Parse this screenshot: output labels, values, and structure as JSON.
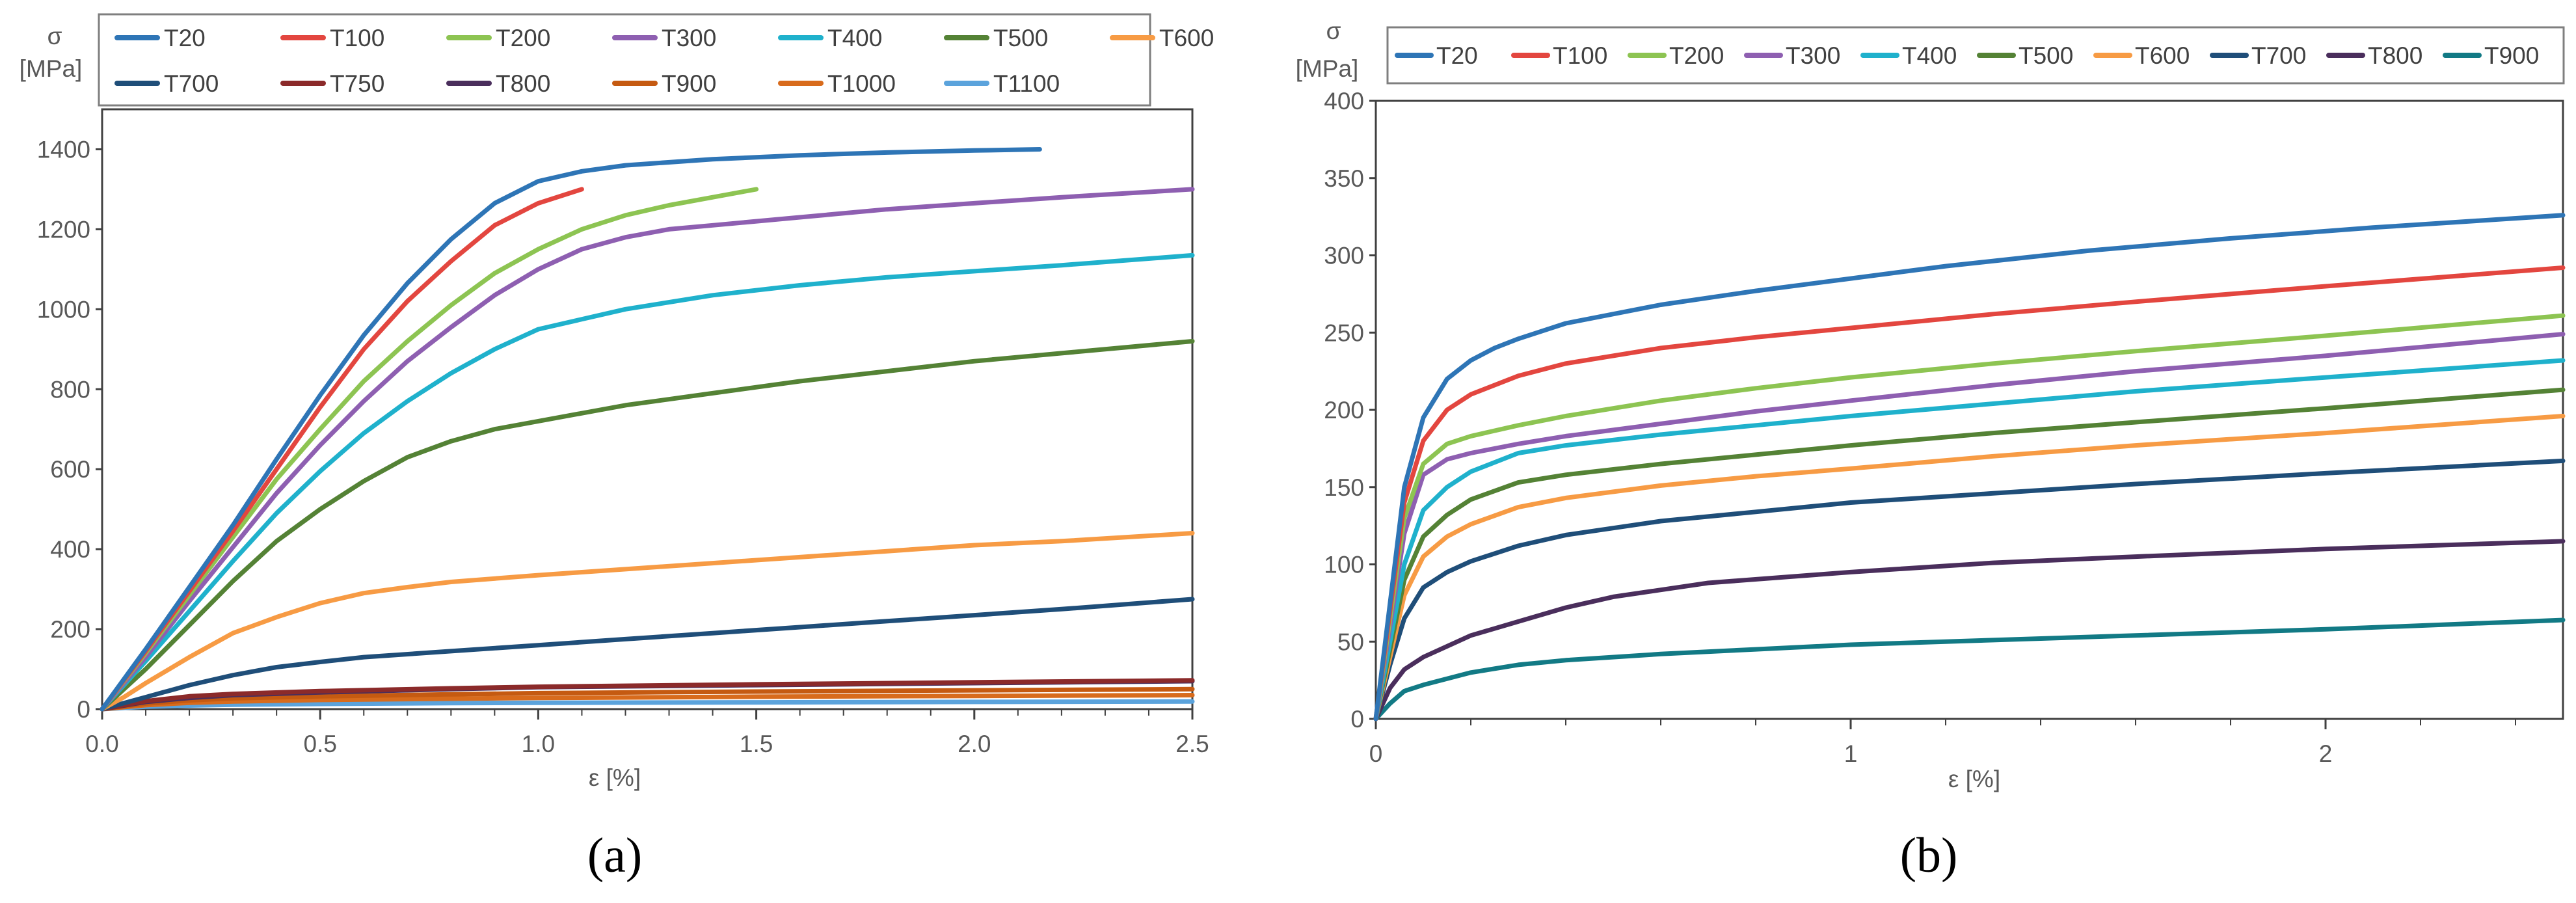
{
  "panels": {
    "a": {
      "label": "(a)"
    },
    "b": {
      "label": "(b)"
    }
  },
  "chart_data": [
    {
      "type": "line",
      "panel": "a",
      "ylabel": "σ",
      "ylabel_unit": "[MPa]",
      "xlabel": "ε [%]",
      "xlim": [
        0,
        2.5
      ],
      "ylim": [
        0,
        1500
      ],
      "xticks": [
        "0.0",
        "0.5",
        "1.0",
        "1.5",
        "2.0",
        "2.5"
      ],
      "yticks": [
        "0",
        "200",
        "400",
        "600",
        "800",
        "1000",
        "1200",
        "1400"
      ],
      "legend_position": "top",
      "series": [
        {
          "name": "T20",
          "color": "#2e75b6",
          "x": [
            0,
            0.05,
            0.1,
            0.2,
            0.3,
            0.4,
            0.5,
            0.6,
            0.7,
            0.8,
            0.9,
            1.0,
            1.1,
            1.2,
            1.4,
            1.6,
            1.8,
            2.0,
            2.15
          ],
          "y": [
            0,
            75,
            150,
            305,
            460,
            625,
            785,
            935,
            1065,
            1175,
            1265,
            1320,
            1345,
            1360,
            1375,
            1385,
            1392,
            1397,
            1400
          ]
        },
        {
          "name": "T100",
          "color": "#e3463f",
          "x": [
            0,
            0.05,
            0.1,
            0.2,
            0.3,
            0.4,
            0.5,
            0.6,
            0.7,
            0.8,
            0.9,
            1.0,
            1.1
          ],
          "y": [
            0,
            72,
            145,
            295,
            445,
            600,
            755,
            900,
            1020,
            1120,
            1210,
            1265,
            1300
          ]
        },
        {
          "name": "T200",
          "color": "#8dc452",
          "x": [
            0,
            0.05,
            0.1,
            0.2,
            0.3,
            0.4,
            0.5,
            0.6,
            0.7,
            0.8,
            0.9,
            1.0,
            1.1,
            1.2,
            1.3,
            1.4,
            1.5
          ],
          "y": [
            0,
            70,
            140,
            285,
            430,
            575,
            700,
            820,
            920,
            1010,
            1090,
            1150,
            1200,
            1235,
            1260,
            1280,
            1300
          ]
        },
        {
          "name": "T300",
          "color": "#8e5fb1",
          "x": [
            0,
            0.05,
            0.1,
            0.2,
            0.3,
            0.4,
            0.5,
            0.6,
            0.7,
            0.8,
            0.9,
            1.0,
            1.1,
            1.2,
            1.3,
            1.4,
            1.6,
            1.8,
            2.0,
            2.2,
            2.5
          ],
          "y": [
            0,
            65,
            130,
            270,
            405,
            540,
            660,
            770,
            870,
            955,
            1035,
            1100,
            1150,
            1180,
            1200,
            1210,
            1230,
            1250,
            1265,
            1280,
            1300
          ]
        },
        {
          "name": "T400",
          "color": "#1fb1cc",
          "x": [
            0,
            0.05,
            0.1,
            0.2,
            0.3,
            0.4,
            0.5,
            0.6,
            0.7,
            0.8,
            0.9,
            1.0,
            1.2,
            1.4,
            1.6,
            1.8,
            2.0,
            2.2,
            2.5
          ],
          "y": [
            0,
            60,
            120,
            245,
            370,
            490,
            595,
            690,
            770,
            840,
            900,
            950,
            1000,
            1035,
            1060,
            1080,
            1095,
            1110,
            1135
          ]
        },
        {
          "name": "T500",
          "color": "#548235",
          "x": [
            0,
            0.05,
            0.1,
            0.2,
            0.3,
            0.4,
            0.5,
            0.6,
            0.7,
            0.8,
            0.9,
            1.0,
            1.2,
            1.4,
            1.6,
            1.8,
            2.0,
            2.2,
            2.5
          ],
          "y": [
            0,
            50,
            100,
            210,
            320,
            420,
            500,
            570,
            630,
            670,
            700,
            720,
            760,
            790,
            820,
            845,
            870,
            890,
            920
          ]
        },
        {
          "name": "T600",
          "color": "#f79b44",
          "x": [
            0,
            0.05,
            0.1,
            0.2,
            0.3,
            0.4,
            0.5,
            0.6,
            0.7,
            0.8,
            1.0,
            1.2,
            1.4,
            1.6,
            1.8,
            2.0,
            2.2,
            2.5
          ],
          "y": [
            0,
            30,
            65,
            130,
            190,
            230,
            265,
            290,
            305,
            318,
            335,
            350,
            365,
            380,
            395,
            410,
            420,
            440
          ]
        },
        {
          "name": "T700",
          "color": "#1f4e79",
          "x": [
            0,
            0.05,
            0.1,
            0.2,
            0.3,
            0.4,
            0.5,
            0.6,
            0.8,
            1.0,
            1.2,
            1.4,
            1.6,
            1.8,
            2.0,
            2.2,
            2.5
          ],
          "y": [
            0,
            15,
            30,
            60,
            85,
            105,
            118,
            130,
            145,
            160,
            175,
            190,
            205,
            220,
            235,
            250,
            275
          ]
        },
        {
          "name": "T750",
          "color": "#8b2a2a",
          "x": [
            0,
            0.1,
            0.2,
            0.3,
            0.5,
            0.8,
            1.0,
            1.5,
            2.0,
            2.5
          ],
          "y": [
            0,
            20,
            32,
            38,
            45,
            52,
            56,
            62,
            67,
            72
          ]
        },
        {
          "name": "T800",
          "color": "#4a2e5c",
          "x": [
            0,
            0.1,
            0.2,
            0.3,
            0.5,
            0.8,
            1.0,
            1.5,
            2.0,
            2.5
          ],
          "y": [
            0,
            18,
            28,
            35,
            42,
            50,
            55,
            60,
            65,
            70
          ]
        },
        {
          "name": "T900",
          "color": "#c55a11",
          "x": [
            0,
            0.1,
            0.2,
            0.3,
            0.5,
            0.8,
            1.0,
            1.5,
            2.0,
            2.5
          ],
          "y": [
            0,
            14,
            22,
            27,
            32,
            37,
            40,
            44,
            47,
            50
          ]
        },
        {
          "name": "T1000",
          "color": "#d86b1c",
          "x": [
            0,
            0.1,
            0.2,
            0.3,
            0.5,
            0.8,
            1.0,
            1.5,
            2.0,
            2.5
          ],
          "y": [
            0,
            10,
            16,
            19,
            23,
            26,
            28,
            31,
            33,
            35
          ]
        },
        {
          "name": "T1100",
          "color": "#5ba3dc",
          "x": [
            0,
            0.1,
            0.2,
            0.3,
            0.5,
            0.8,
            1.0,
            1.5,
            2.0,
            2.5
          ],
          "y": [
            0,
            6,
            9,
            11,
            13,
            15,
            16,
            17,
            18,
            19
          ]
        }
      ]
    },
    {
      "type": "line",
      "panel": "b",
      "ylabel": "σ",
      "ylabel_unit": "[MPa]",
      "xlabel": "ε [%]",
      "xlim": [
        0,
        2.5
      ],
      "ylim": [
        0,
        400
      ],
      "xticks": [
        "0",
        "1",
        "2"
      ],
      "yticks": [
        "0",
        "50",
        "100",
        "150",
        "200",
        "250",
        "300",
        "350",
        "400"
      ],
      "legend_position": "top",
      "series": [
        {
          "name": "T20",
          "color": "#2e75b6",
          "x": [
            0,
            0.03,
            0.06,
            0.1,
            0.15,
            0.2,
            0.25,
            0.3,
            0.4,
            0.6,
            0.8,
            1.0,
            1.2,
            1.5,
            1.8,
            2.1,
            2.5
          ],
          "y": [
            0,
            75,
            150,
            195,
            220,
            232,
            240,
            246,
            256,
            268,
            277,
            285,
            293,
            303,
            311,
            318,
            326
          ]
        },
        {
          "name": "T100",
          "color": "#e3463f",
          "x": [
            0,
            0.03,
            0.06,
            0.1,
            0.15,
            0.2,
            0.3,
            0.4,
            0.6,
            0.8,
            1.0,
            1.3,
            1.6,
            2.0,
            2.5
          ],
          "y": [
            0,
            70,
            140,
            180,
            200,
            210,
            222,
            230,
            240,
            247,
            253,
            262,
            270,
            280,
            292
          ]
        },
        {
          "name": "T200",
          "color": "#8dc452",
          "x": [
            0,
            0.03,
            0.06,
            0.1,
            0.15,
            0.2,
            0.3,
            0.4,
            0.6,
            0.8,
            1.0,
            1.3,
            1.6,
            2.0,
            2.5
          ],
          "y": [
            0,
            65,
            130,
            165,
            178,
            183,
            190,
            196,
            206,
            214,
            221,
            230,
            238,
            248,
            261
          ]
        },
        {
          "name": "T300",
          "color": "#8e5fb1",
          "x": [
            0,
            0.03,
            0.06,
            0.1,
            0.15,
            0.2,
            0.3,
            0.4,
            0.6,
            0.8,
            1.0,
            1.3,
            1.6,
            2.0,
            2.5
          ],
          "y": [
            0,
            60,
            120,
            158,
            168,
            172,
            178,
            183,
            191,
            199,
            206,
            216,
            225,
            235,
            249
          ]
        },
        {
          "name": "T400",
          "color": "#1fb1cc",
          "x": [
            0,
            0.03,
            0.06,
            0.1,
            0.15,
            0.2,
            0.3,
            0.4,
            0.6,
            0.8,
            1.0,
            1.3,
            1.6,
            2.0,
            2.5
          ],
          "y": [
            0,
            50,
            100,
            135,
            150,
            160,
            172,
            177,
            184,
            190,
            196,
            204,
            212,
            221,
            232
          ]
        },
        {
          "name": "T500",
          "color": "#548235",
          "x": [
            0,
            0.03,
            0.06,
            0.1,
            0.15,
            0.2,
            0.3,
            0.4,
            0.6,
            0.8,
            1.0,
            1.3,
            1.6,
            2.0,
            2.5
          ],
          "y": [
            0,
            45,
            90,
            118,
            132,
            142,
            153,
            158,
            165,
            171,
            177,
            185,
            192,
            201,
            213
          ]
        },
        {
          "name": "T600",
          "color": "#f79b44",
          "x": [
            0,
            0.03,
            0.06,
            0.1,
            0.15,
            0.2,
            0.3,
            0.4,
            0.6,
            0.8,
            1.0,
            1.3,
            1.6,
            2.0,
            2.5
          ],
          "y": [
            0,
            40,
            80,
            105,
            118,
            126,
            137,
            143,
            151,
            157,
            162,
            170,
            177,
            185,
            196
          ]
        },
        {
          "name": "T700",
          "color": "#1f4e79",
          "x": [
            0,
            0.03,
            0.06,
            0.1,
            0.15,
            0.2,
            0.3,
            0.4,
            0.6,
            0.8,
            1.0,
            1.3,
            1.6,
            2.0,
            2.5
          ],
          "y": [
            0,
            35,
            65,
            85,
            95,
            102,
            112,
            119,
            128,
            134,
            140,
            146,
            152,
            159,
            167
          ]
        },
        {
          "name": "T800",
          "color": "#4a2e5c",
          "x": [
            0,
            0.03,
            0.06,
            0.1,
            0.15,
            0.2,
            0.3,
            0.4,
            0.5,
            0.7,
            1.0,
            1.3,
            1.6,
            2.0,
            2.5
          ],
          "y": [
            0,
            20,
            32,
            40,
            47,
            54,
            63,
            72,
            79,
            88,
            95,
            101,
            105,
            110,
            115
          ]
        },
        {
          "name": "T900",
          "color": "#127a85",
          "x": [
            0,
            0.03,
            0.06,
            0.1,
            0.15,
            0.2,
            0.3,
            0.4,
            0.6,
            0.8,
            1.0,
            1.3,
            1.6,
            2.0,
            2.5
          ],
          "y": [
            0,
            10,
            18,
            22,
            26,
            30,
            35,
            38,
            42,
            45,
            48,
            51,
            54,
            58,
            64
          ]
        }
      ]
    }
  ]
}
